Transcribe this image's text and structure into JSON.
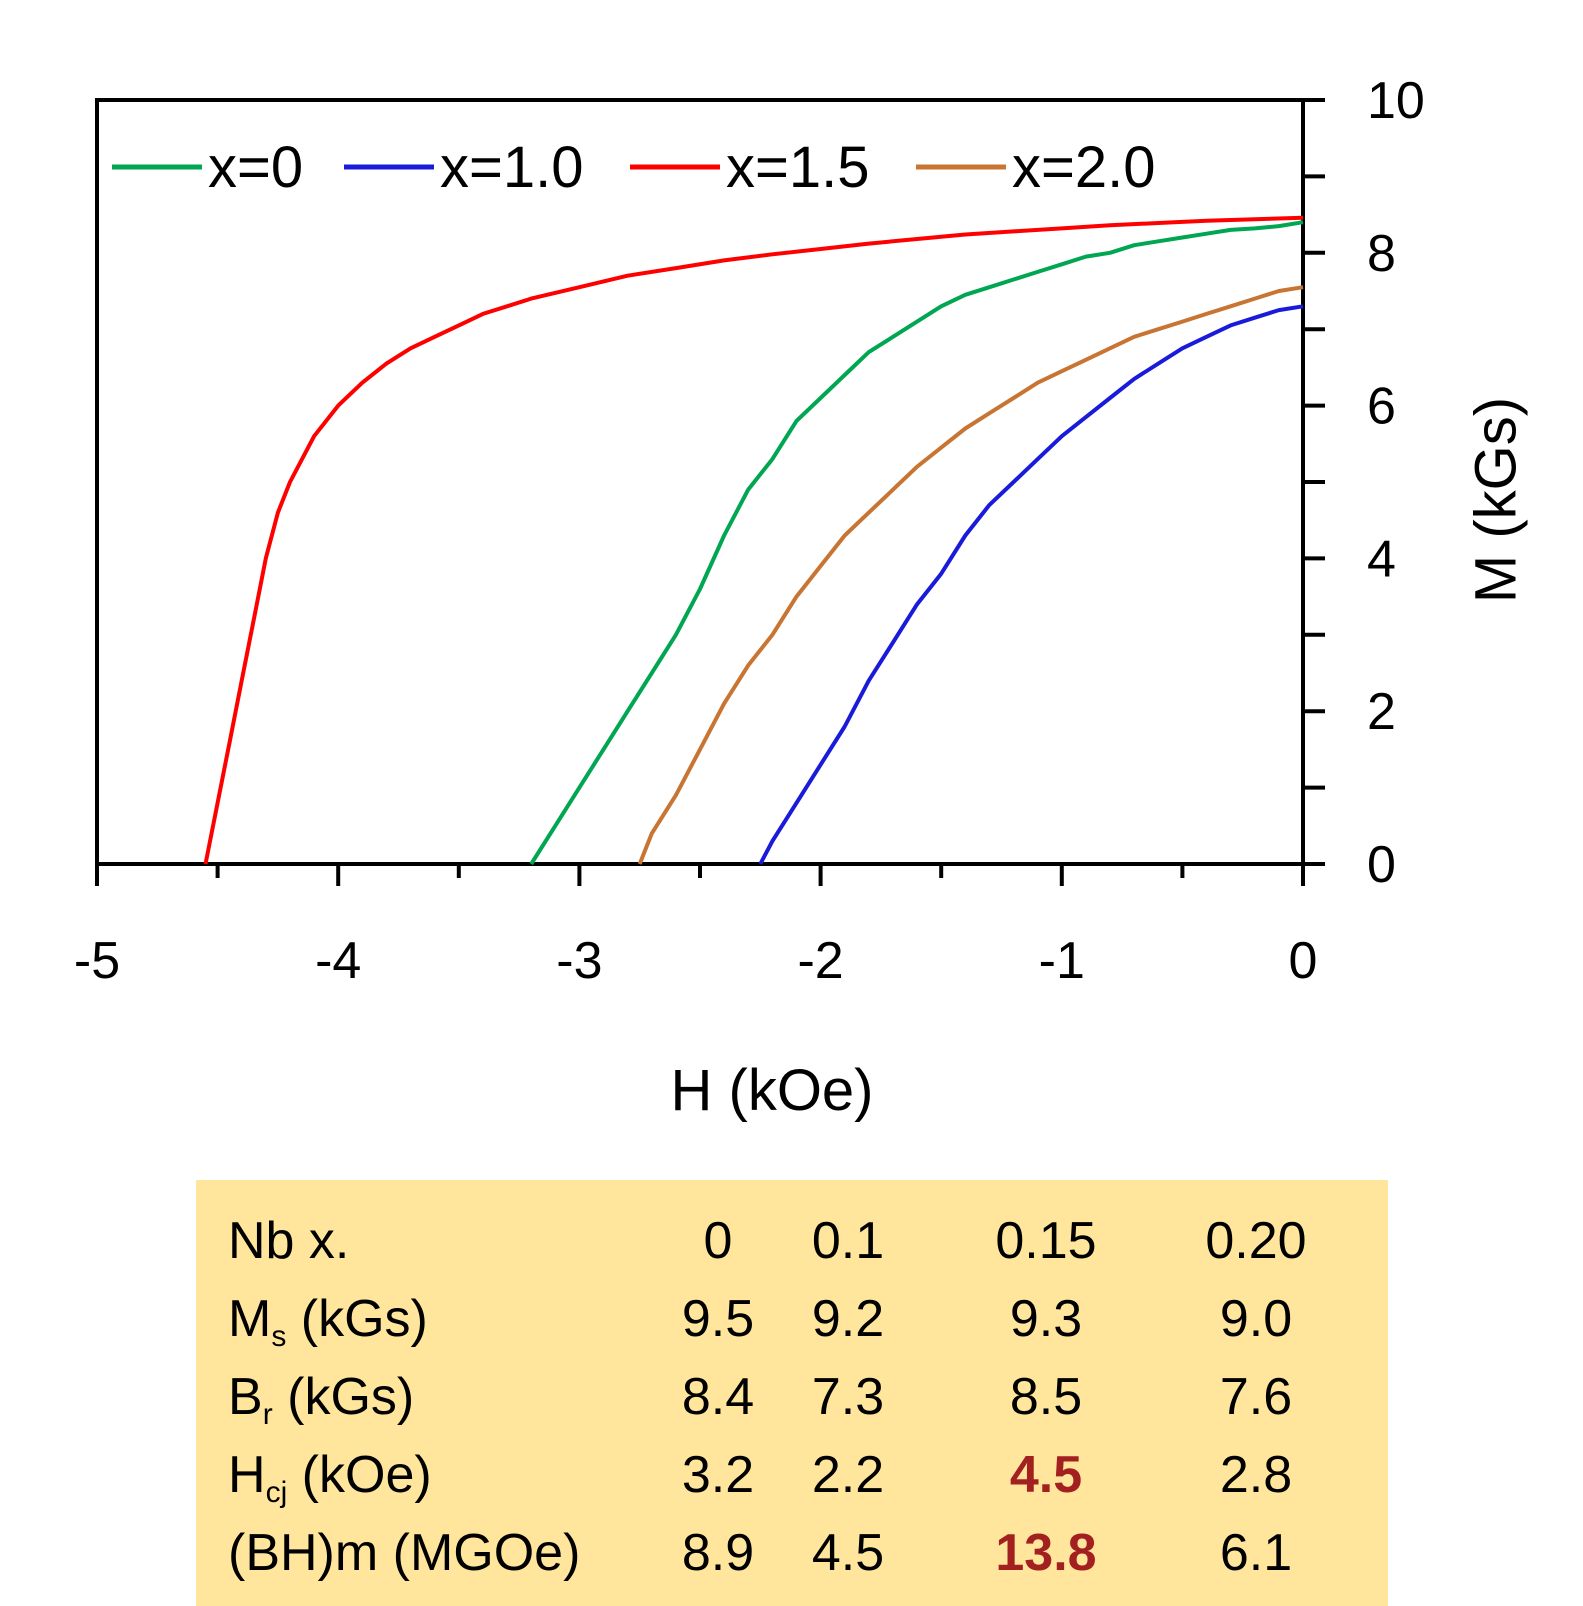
{
  "chart_data": {
    "type": "line",
    "xlabel": "H (kOe)",
    "ylabel": "M (kGs)",
    "xlim": [
      -5,
      0
    ],
    "ylim": [
      0,
      10
    ],
    "x_ticks": [
      "-5",
      "-4",
      "-3",
      "-2",
      "-1",
      "0"
    ],
    "y_ticks": [
      "0",
      "2",
      "4",
      "6",
      "8",
      "10"
    ],
    "y_axis_side": "right",
    "grid": false,
    "legend_position": "top",
    "series": [
      {
        "name": "x=0",
        "color": "#00a651",
        "points": [
          [
            -3.2,
            0.0
          ],
          [
            -3.1,
            0.5
          ],
          [
            -3.0,
            1.0
          ],
          [
            -2.9,
            1.5
          ],
          [
            -2.8,
            2.0
          ],
          [
            -2.7,
            2.5
          ],
          [
            -2.6,
            3.0
          ],
          [
            -2.5,
            3.6
          ],
          [
            -2.4,
            4.3
          ],
          [
            -2.3,
            4.9
          ],
          [
            -2.2,
            5.3
          ],
          [
            -2.1,
            5.8
          ],
          [
            -2.0,
            6.1
          ],
          [
            -1.9,
            6.4
          ],
          [
            -1.8,
            6.7
          ],
          [
            -1.7,
            6.9
          ],
          [
            -1.6,
            7.1
          ],
          [
            -1.5,
            7.3
          ],
          [
            -1.4,
            7.45
          ],
          [
            -1.3,
            7.55
          ],
          [
            -1.2,
            7.65
          ],
          [
            -1.1,
            7.75
          ],
          [
            -1.0,
            7.85
          ],
          [
            -0.9,
            7.95
          ],
          [
            -0.8,
            8.0
          ],
          [
            -0.7,
            8.1
          ],
          [
            -0.6,
            8.15
          ],
          [
            -0.5,
            8.2
          ],
          [
            -0.4,
            8.25
          ],
          [
            -0.3,
            8.3
          ],
          [
            -0.2,
            8.32
          ],
          [
            -0.1,
            8.35
          ],
          [
            0.0,
            8.4
          ]
        ]
      },
      {
        "name": "x=1.0",
        "color": "#1a1adb",
        "points": [
          [
            -2.25,
            0.0
          ],
          [
            -2.2,
            0.3
          ],
          [
            -2.1,
            0.8
          ],
          [
            -2.0,
            1.3
          ],
          [
            -1.9,
            1.8
          ],
          [
            -1.8,
            2.4
          ],
          [
            -1.7,
            2.9
          ],
          [
            -1.6,
            3.4
          ],
          [
            -1.5,
            3.8
          ],
          [
            -1.4,
            4.3
          ],
          [
            -1.3,
            4.7
          ],
          [
            -1.2,
            5.0
          ],
          [
            -1.1,
            5.3
          ],
          [
            -1.0,
            5.6
          ],
          [
            -0.9,
            5.85
          ],
          [
            -0.8,
            6.1
          ],
          [
            -0.7,
            6.35
          ],
          [
            -0.6,
            6.55
          ],
          [
            -0.5,
            6.75
          ],
          [
            -0.4,
            6.9
          ],
          [
            -0.3,
            7.05
          ],
          [
            -0.2,
            7.15
          ],
          [
            -0.1,
            7.25
          ],
          [
            0.0,
            7.3
          ]
        ]
      },
      {
        "name": "x=1.5",
        "color": "#ff0000",
        "points": [
          [
            -4.55,
            0.0
          ],
          [
            -4.5,
            0.8
          ],
          [
            -4.45,
            1.6
          ],
          [
            -4.4,
            2.4
          ],
          [
            -4.35,
            3.2
          ],
          [
            -4.3,
            4.0
          ],
          [
            -4.25,
            4.6
          ],
          [
            -4.2,
            5.0
          ],
          [
            -4.1,
            5.6
          ],
          [
            -4.0,
            6.0
          ],
          [
            -3.9,
            6.3
          ],
          [
            -3.8,
            6.55
          ],
          [
            -3.7,
            6.75
          ],
          [
            -3.6,
            6.9
          ],
          [
            -3.5,
            7.05
          ],
          [
            -3.4,
            7.2
          ],
          [
            -3.3,
            7.3
          ],
          [
            -3.2,
            7.4
          ],
          [
            -3.0,
            7.55
          ],
          [
            -2.8,
            7.7
          ],
          [
            -2.6,
            7.8
          ],
          [
            -2.4,
            7.9
          ],
          [
            -2.2,
            7.98
          ],
          [
            -2.0,
            8.05
          ],
          [
            -1.8,
            8.12
          ],
          [
            -1.6,
            8.18
          ],
          [
            -1.4,
            8.24
          ],
          [
            -1.2,
            8.28
          ],
          [
            -1.0,
            8.32
          ],
          [
            -0.8,
            8.36
          ],
          [
            -0.6,
            8.39
          ],
          [
            -0.4,
            8.42
          ],
          [
            -0.2,
            8.44
          ],
          [
            0.0,
            8.46
          ]
        ]
      },
      {
        "name": "x=2.0",
        "color": "#c87533",
        "points": [
          [
            -2.75,
            0.0
          ],
          [
            -2.7,
            0.4
          ],
          [
            -2.6,
            0.9
          ],
          [
            -2.5,
            1.5
          ],
          [
            -2.4,
            2.1
          ],
          [
            -2.3,
            2.6
          ],
          [
            -2.2,
            3.0
          ],
          [
            -2.1,
            3.5
          ],
          [
            -2.0,
            3.9
          ],
          [
            -1.9,
            4.3
          ],
          [
            -1.8,
            4.6
          ],
          [
            -1.7,
            4.9
          ],
          [
            -1.6,
            5.2
          ],
          [
            -1.5,
            5.45
          ],
          [
            -1.4,
            5.7
          ],
          [
            -1.3,
            5.9
          ],
          [
            -1.2,
            6.1
          ],
          [
            -1.1,
            6.3
          ],
          [
            -1.0,
            6.45
          ],
          [
            -0.9,
            6.6
          ],
          [
            -0.8,
            6.75
          ],
          [
            -0.7,
            6.9
          ],
          [
            -0.6,
            7.0
          ],
          [
            -0.5,
            7.1
          ],
          [
            -0.4,
            7.2
          ],
          [
            -0.3,
            7.3
          ],
          [
            -0.2,
            7.4
          ],
          [
            -0.1,
            7.5
          ],
          [
            0.0,
            7.55
          ]
        ]
      }
    ]
  },
  "table": {
    "rows": [
      {
        "label": "Nb x.",
        "sub": "",
        "label_tail": "",
        "values": [
          "0",
          "0.1",
          "0.15",
          "0.20"
        ],
        "highlight": null
      },
      {
        "label": "M",
        "sub": "s",
        "label_tail": " (kGs)",
        "values": [
          "9.5",
          "9.2",
          "9.3",
          "9.0"
        ],
        "highlight": null
      },
      {
        "label": "B",
        "sub": "r",
        "label_tail": "  (kGs)",
        "values": [
          "8.4",
          "7.3",
          "8.5",
          "7.6"
        ],
        "highlight": null
      },
      {
        "label": "H",
        "sub": "cj",
        "label_tail": " (kOe)",
        "values": [
          "3.2",
          "2.2",
          "4.5",
          "2.8"
        ],
        "highlight": 2
      },
      {
        "label": "(BH)m  (MGOe)",
        "sub": "",
        "label_tail": "",
        "values": [
          "8.9",
          "4.5",
          "13.8",
          "6.1"
        ],
        "highlight": 2
      }
    ],
    "highlight_color": "#a32020",
    "background": "#ffe69c"
  }
}
